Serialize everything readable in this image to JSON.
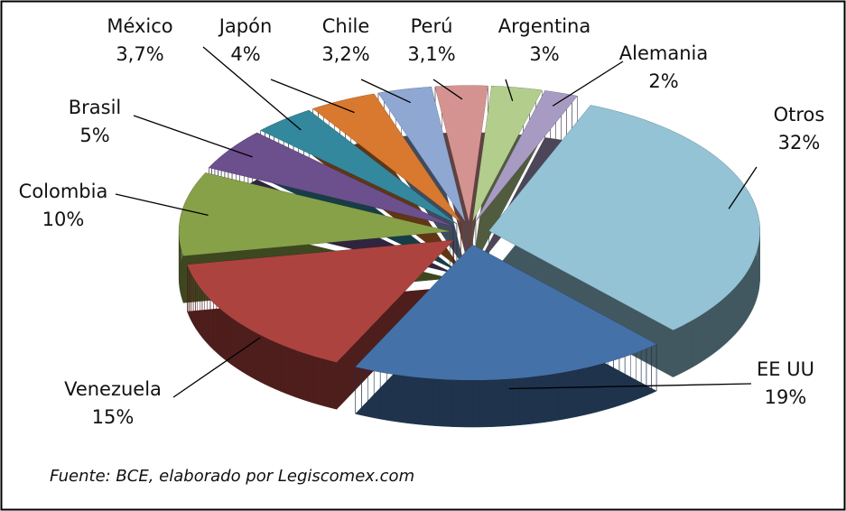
{
  "chart_data": {
    "type": "pie",
    "categories": [
      "Otros",
      "EE UU",
      "Venezuela",
      "Colombia",
      "Brasil",
      "México",
      "Japón",
      "Chile",
      "Perú",
      "Argentina",
      "Alemania"
    ],
    "values": [
      32,
      19,
      15,
      10,
      5,
      3.7,
      4,
      3.2,
      3.1,
      3,
      2
    ],
    "value_labels": [
      "32%",
      "19%",
      "15%",
      "10%",
      "5%",
      "3,7%",
      "4%",
      "3,2%",
      "3,1%",
      "3%",
      "2%"
    ],
    "colors": [
      "#93c3d5",
      "#4571a9",
      "#ad433f",
      "#87a148",
      "#6c4f8d",
      "#33889e",
      "#d8792f",
      "#8fa7d3",
      "#d49391",
      "#b3cd8d",
      "#a89bc3"
    ],
    "note": "Fuente: BCE, elaborado por Legiscomex.com"
  }
}
